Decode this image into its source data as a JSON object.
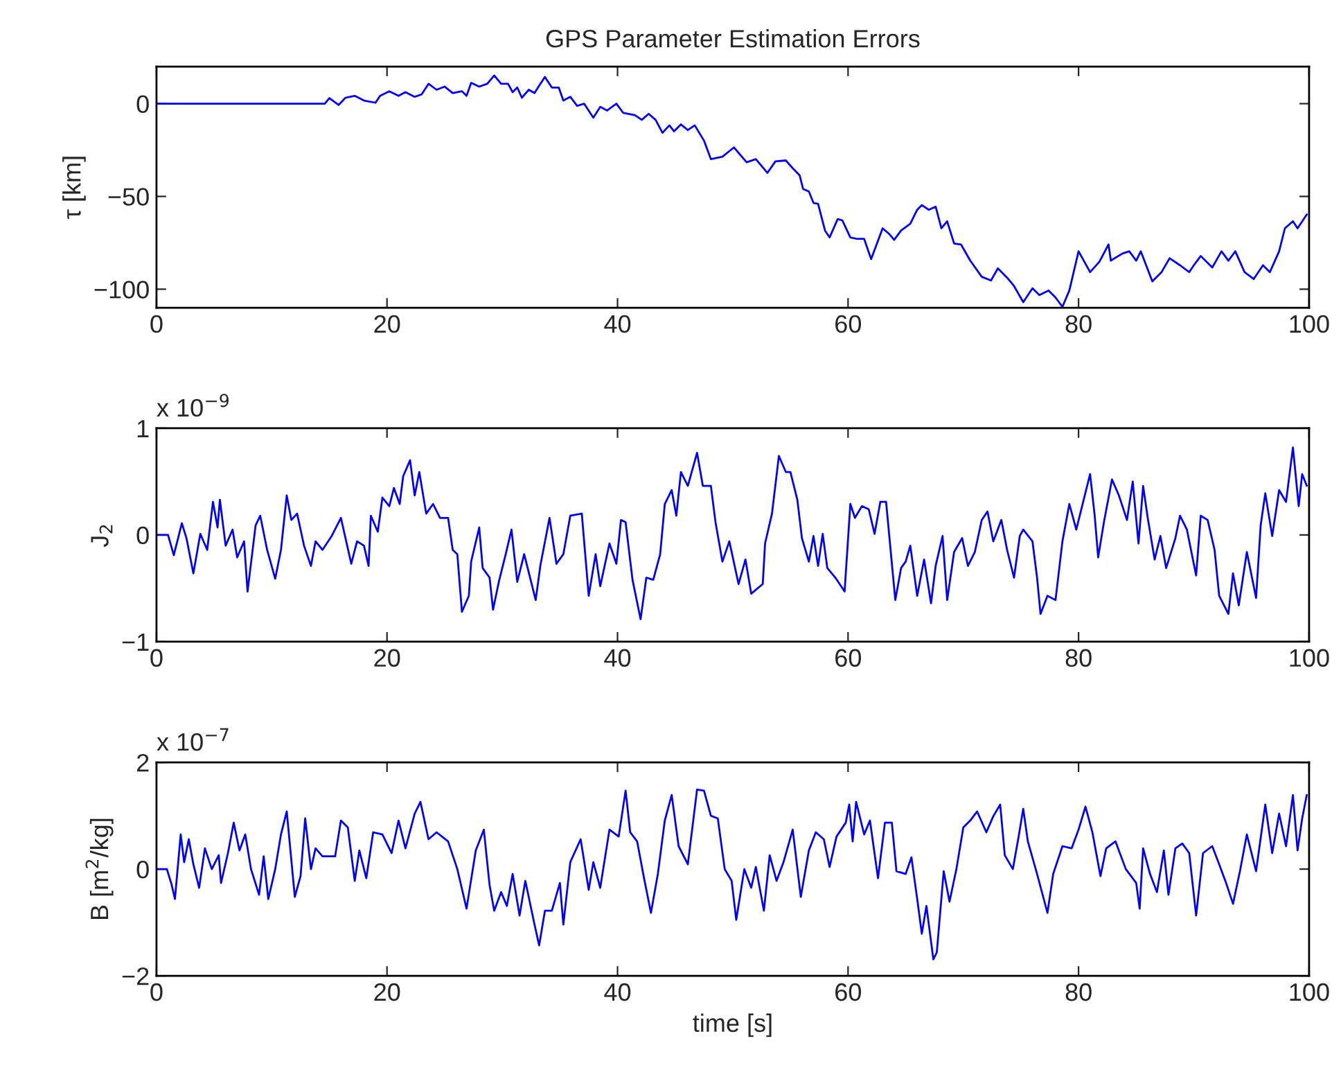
{
  "chart_data": [
    {
      "type": "line",
      "title": "GPS Parameter Estimation Errors",
      "ylabel": "τ [km]",
      "xlim": [
        0,
        100
      ],
      "xticks": [
        0,
        20,
        40,
        60,
        80,
        100
      ],
      "ylim": [
        -110,
        20
      ],
      "yticks": [
        {
          "value": -100,
          "label": "−100"
        },
        {
          "value": -50,
          "label": "−50"
        },
        0
      ],
      "series": [
        {
          "color": "#0000ff",
          "x": [
            0,
            14.6,
            15.0,
            15.8,
            16.4,
            17.2,
            18,
            19,
            19.4,
            20.2,
            21,
            21.6,
            22.4,
            23,
            23.6,
            24.3,
            25,
            25.7,
            26.5,
            26.9,
            27.3,
            28,
            28.7,
            29.3,
            29.9,
            30.5,
            30.9,
            31.3,
            31.7,
            32.3,
            32.8,
            33.1,
            33.7,
            34.3,
            34.9,
            35.3,
            35.9,
            36.5,
            37.1,
            37.9,
            38.5,
            39.1,
            39.9,
            40.5,
            41.5,
            42.1,
            42.7,
            43.3,
            43.9,
            44.5,
            44.9,
            45.5,
            46.1,
            46.7,
            47.5,
            48.1,
            49.1,
            50.1,
            51.2,
            52,
            53,
            53.7,
            54.6,
            55.2,
            55.8,
            56.1,
            56.6,
            57,
            57.4,
            58,
            58.4,
            59.1,
            59.5,
            60.2,
            60.8,
            61.4,
            62,
            63,
            63.6,
            64,
            64.6,
            65.4,
            66,
            66.4,
            67,
            67.6,
            68.1,
            68.6,
            69.2,
            69.8,
            70.6,
            71.6,
            72.4,
            73,
            73.8,
            74.4,
            75.2,
            76,
            76.6,
            77.4,
            78,
            78.6,
            79.2,
            80,
            81,
            81.8,
            82.6,
            82.8,
            83.8,
            84.4,
            85,
            85.4,
            86.4,
            87.2,
            87.9,
            88.8,
            89.6,
            90,
            90.6,
            91.6,
            92.4,
            93,
            93.6,
            94.4,
            95.2,
            96,
            96.6,
            97.4,
            97.9,
            98.6,
            99,
            99.8
          ],
          "values": [
            0,
            0,
            3,
            -0.7,
            3.2,
            4.2,
            1.7,
            0.5,
            4.2,
            6.7,
            4.2,
            6.2,
            3.7,
            5,
            10.7,
            7.5,
            9.2,
            5.7,
            6.7,
            4.2,
            11.2,
            9.2,
            10.7,
            15.2,
            10.7,
            10.7,
            6.2,
            8.7,
            3.2,
            7.5,
            5.7,
            8.7,
            14.4,
            8.7,
            8.7,
            1.7,
            3.7,
            -1.2,
            0,
            -7.5,
            -1.7,
            -3.7,
            0,
            -5,
            -6.2,
            -8.7,
            -5.5,
            -8.7,
            -15.7,
            -11.7,
            -14.9,
            -11.2,
            -14.2,
            -11.7,
            -19.9,
            -29.9,
            -28.6,
            -23.6,
            -31.6,
            -29.9,
            -37.3,
            -31.1,
            -30.6,
            -34.8,
            -38.6,
            -46,
            -47.3,
            -53.5,
            -54,
            -68.4,
            -72.1,
            -62.2,
            -62.9,
            -72.1,
            -72.9,
            -72.9,
            -83.8,
            -67.2,
            -70.4,
            -73.4,
            -68.4,
            -64.7,
            -57.2,
            -54.7,
            -57.2,
            -55.5,
            -67.2,
            -63.4,
            -75.4,
            -75.9,
            -84.6,
            -93.3,
            -95.3,
            -88.8,
            -93.8,
            -98.3,
            -107,
            -99.5,
            -103.2,
            -100.7,
            -104.5,
            -109.5,
            -100.7,
            -79.6,
            -90.8,
            -85.3,
            -75.9,
            -84.6,
            -80.8,
            -79.6,
            -84.6,
            -79.6,
            -95.8,
            -90.8,
            -83.3,
            -87.1,
            -90.8,
            -87.1,
            -82.1,
            -88.3,
            -79.6,
            -84.6,
            -79.6,
            -90.8,
            -94.5,
            -87.1,
            -90.8,
            -79.6,
            -67.2,
            -63.4,
            -67.2,
            -59.7
          ]
        }
      ]
    },
    {
      "type": "line",
      "ylabel": "J$_{2}$",
      "annotations": [
        "x 10$^{−9}$"
      ],
      "xlim": [
        0,
        100
      ],
      "xticks": [
        0,
        20,
        40,
        60,
        80,
        100
      ],
      "ylim": [
        -1,
        1
      ],
      "yticks": [
        {
          "value": -1,
          "label": "−1"
        },
        0,
        1
      ],
      "series": [
        {
          "color": "#0000ff",
          "x": [
            0,
            1,
            1.5,
            2.2,
            2.6,
            3.2,
            3.8,
            4.4,
            4.9,
            5.3,
            5.5,
            6,
            6.6,
            7,
            7.6,
            7.9,
            8.6,
            9,
            9.6,
            10.3,
            10.8,
            11.3,
            11.7,
            12.2,
            12.8,
            13.4,
            13.8,
            14.4,
            15.2,
            16,
            16.9,
            17.4,
            18,
            18.4,
            18.6,
            19.2,
            19.6,
            20.2,
            20.6,
            21.1,
            21.4,
            22,
            22.4,
            22.8,
            23.4,
            24,
            24.6,
            25.3,
            25.7,
            26.1,
            26.5,
            27.1,
            27.3,
            28,
            28.3,
            28.9,
            29.2,
            29.7,
            30.3,
            30.8,
            31.3,
            31.9,
            32.9,
            33.3,
            34.1,
            34.7,
            35.3,
            35.9,
            36.9,
            37.5,
            38.1,
            38.5,
            39.3,
            39.9,
            40.3,
            40.7,
            41.3,
            42,
            42.5,
            43.1,
            43.7,
            44.1,
            44.7,
            45.1,
            45.5,
            46.1,
            46.9,
            47.4,
            48.1,
            48.5,
            49.1,
            49.7,
            50.5,
            51.1,
            51.6,
            52.6,
            52.8,
            53.4,
            54,
            54.6,
            55,
            55.6,
            56,
            56.6,
            57,
            57.4,
            57.8,
            58.2,
            58.9,
            59.7,
            60.2,
            60.6,
            61.2,
            61.8,
            62.3,
            62.8,
            63.3,
            64.1,
            64.6,
            65,
            65.4,
            66,
            66.6,
            67.2,
            67.6,
            68.2,
            68.6,
            69.2,
            69.9,
            70.4,
            71,
            71.6,
            72.1,
            72.6,
            73.3,
            73.8,
            74.4,
            74.9,
            75.2,
            76,
            76.4,
            76.7,
            77.3,
            78,
            78.6,
            79.2,
            79.8,
            80.4,
            81,
            81.4,
            81.7,
            82.2,
            82.9,
            83.5,
            84.2,
            84.7,
            85.2,
            85.6,
            86,
            86.6,
            87.1,
            87.6,
            88.4,
            88.8,
            89.4,
            90.2,
            90.6,
            91.2,
            91.8,
            92.2,
            93,
            93.4,
            93.9,
            94.6,
            95.4,
            95.8,
            96.2,
            96.8,
            97.4,
            98,
            98.6,
            99.1,
            99.4,
            99.8
          ],
          "values": [
            0,
            0,
            -0.19,
            0.11,
            -0.03,
            -0.36,
            0.01,
            -0.14,
            0.31,
            0.07,
            0.33,
            -0.1,
            0.05,
            -0.21,
            -0.06,
            -0.53,
            0.09,
            0.18,
            -0.14,
            -0.41,
            -0.14,
            0.37,
            0.14,
            0.2,
            -0.1,
            -0.29,
            -0.06,
            -0.14,
            -0.01,
            0.16,
            -0.27,
            -0.06,
            -0.1,
            -0.29,
            0.18,
            0.03,
            0.35,
            0.27,
            0.44,
            0.29,
            0.55,
            0.7,
            0.37,
            0.59,
            0.2,
            0.29,
            0.16,
            0.16,
            -0.14,
            -0.18,
            -0.72,
            -0.57,
            -0.25,
            0.07,
            -0.31,
            -0.4,
            -0.7,
            -0.44,
            -0.18,
            0.05,
            -0.44,
            -0.18,
            -0.61,
            -0.29,
            0.16,
            -0.27,
            -0.18,
            0.18,
            0.2,
            -0.57,
            -0.18,
            -0.48,
            -0.08,
            -0.27,
            0.14,
            0.12,
            -0.42,
            -0.79,
            -0.4,
            -0.42,
            -0.18,
            0.29,
            0.42,
            0.18,
            0.59,
            0.46,
            0.77,
            0.46,
            0.46,
            0.12,
            -0.25,
            -0.06,
            -0.46,
            -0.23,
            -0.55,
            -0.46,
            -0.08,
            0.2,
            0.74,
            0.59,
            0.59,
            0.33,
            -0.03,
            -0.25,
            -0.01,
            -0.29,
            0.01,
            -0.31,
            -0.4,
            -0.53,
            0.29,
            0.16,
            0.27,
            0.24,
            0.01,
            0.31,
            0.31,
            -0.61,
            -0.31,
            -0.25,
            -0.1,
            -0.57,
            -0.23,
            -0.64,
            -0.29,
            -0.01,
            -0.61,
            -0.16,
            -0.03,
            -0.29,
            -0.16,
            0.14,
            0.22,
            -0.06,
            0.14,
            -0.14,
            -0.4,
            -0.01,
            0.05,
            -0.06,
            -0.4,
            -0.74,
            -0.57,
            -0.61,
            -0.06,
            0.29,
            0.05,
            0.31,
            0.57,
            0.18,
            -0.21,
            0.12,
            0.52,
            0.37,
            0.14,
            0.5,
            -0.08,
            0.46,
            0.16,
            -0.23,
            -0.01,
            -0.31,
            -0.03,
            0.18,
            0.05,
            -0.38,
            0.18,
            0.14,
            -0.14,
            -0.57,
            -0.74,
            -0.36,
            -0.66,
            -0.16,
            -0.59,
            0.09,
            0.39,
            -0.01,
            0.42,
            0.31,
            0.82,
            0.27,
            0.57,
            0.46
          ]
        }
      ]
    },
    {
      "type": "line",
      "xlabel": "time [s]",
      "ylabel": "B [m$^{2}$/kg]",
      "annotations": [
        "x 10$^{−7}$"
      ],
      "xlim": [
        0,
        100
      ],
      "xticks": [
        0,
        20,
        40,
        60,
        80,
        100
      ],
      "ylim": [
        -2,
        2
      ],
      "yticks": [
        {
          "value": -2,
          "label": "−2"
        },
        0,
        2
      ],
      "series": [
        {
          "color": "#0000ff",
          "x": [
            0,
            0.9,
            1.3,
            1.6,
            2.1,
            2.4,
            2.8,
            3.2,
            3.7,
            4.2,
            4.8,
            5.4,
            5.6,
            6.2,
            6.7,
            7.2,
            7.7,
            8.2,
            8.9,
            9.3,
            9.7,
            10.3,
            10.8,
            11.3,
            11.7,
            12,
            12.5,
            12.9,
            13.4,
            13.8,
            14.4,
            15.5,
            16,
            16.6,
            17.2,
            17.6,
            18.2,
            18.8,
            19.6,
            20.4,
            21,
            21.6,
            22.4,
            22.9,
            23.6,
            24.3,
            25.3,
            26.1,
            26.9,
            27.7,
            28.4,
            28.9,
            29.3,
            29.9,
            30.4,
            30.9,
            31.5,
            32,
            32.8,
            33.2,
            33.7,
            34.3,
            35,
            35.3,
            35.9,
            36.8,
            37.5,
            37.9,
            38.5,
            39.3,
            40.1,
            40.7,
            41.1,
            41.7,
            42.3,
            42.9,
            43.5,
            44.1,
            44.7,
            45.3,
            46.1,
            46.9,
            47.5,
            48.1,
            48.7,
            49.3,
            49.9,
            50.3,
            51,
            51.6,
            52,
            52.7,
            53.2,
            53.8,
            54.4,
            55.2,
            55.9,
            56.6,
            57.2,
            57.9,
            58.4,
            59,
            59.8,
            60.1,
            60.4,
            60.7,
            61.4,
            61.9,
            62.6,
            63.2,
            63.8,
            64.2,
            65,
            65.5,
            66,
            66.4,
            66.8,
            67.4,
            67.7,
            68.3,
            68.8,
            69.4,
            70,
            70.6,
            71.2,
            72,
            72.6,
            73.2,
            73.6,
            74.3,
            74.8,
            75.2,
            75.6,
            76.4,
            77.3,
            77.8,
            78.6,
            79.4,
            80,
            80.6,
            81.2,
            81.9,
            82.4,
            83.2,
            84.1,
            85,
            85.3,
            85.6,
            86.2,
            86.8,
            87.4,
            87.8,
            88.4,
            89,
            89.6,
            90.2,
            90.8,
            91.6,
            92.2,
            92.8,
            93.4,
            94,
            94.6,
            95.4,
            96.2,
            96.8,
            97.4,
            98,
            98.6,
            99,
            99.4,
            99.8
          ],
          "values": [
            0,
            0,
            -0.28,
            -0.56,
            0.65,
            0.13,
            0.56,
            0.09,
            -0.35,
            0.39,
            0,
            0.26,
            -0.26,
            0.3,
            0.87,
            0.35,
            0.65,
            0,
            -0.48,
            0.24,
            -0.56,
            0,
            0.65,
            1.08,
            0.17,
            -0.52,
            -0.13,
            0.95,
            0,
            0.39,
            0.24,
            0.24,
            0.91,
            0.78,
            -0.22,
            0.35,
            -0.17,
            0.69,
            0.65,
            0.3,
            0.91,
            0.39,
            1.04,
            1.26,
            0.56,
            0.69,
            0.52,
            0,
            -0.74,
            0.35,
            0.74,
            -0.3,
            -0.78,
            -0.43,
            -0.69,
            -0.09,
            -0.87,
            -0.22,
            -1.04,
            -1.43,
            -0.78,
            -0.78,
            -0.26,
            -1.04,
            0.13,
            0.56,
            -0.39,
            0.13,
            -0.35,
            0.74,
            0.61,
            1.47,
            0.69,
            0.52,
            -0.17,
            -0.82,
            -0.09,
            0.91,
            1.39,
            0.43,
            0.09,
            1.49,
            1.47,
            1,
            0.95,
            0,
            -0.22,
            -0.95,
            0,
            -0.35,
            0.04,
            -0.78,
            0.26,
            -0.22,
            0.13,
            0.74,
            -0.52,
            0.35,
            0.69,
            0.56,
            0.04,
            0.61,
            0.87,
            1.21,
            0.52,
            1.26,
            0.65,
            0.91,
            -0.17,
            0.87,
            0.87,
            -0.04,
            -0.09,
            0.22,
            -0.56,
            -1.21,
            -0.69,
            -1.69,
            -1.56,
            -0.04,
            -0.61,
            0,
            0.78,
            0.91,
            1.08,
            0.69,
            0.99,
            1.21,
            0.26,
            0,
            0.61,
            1.13,
            0.52,
            -0.09,
            -0.82,
            -0.09,
            0.43,
            0.39,
            0.74,
            1.17,
            0.69,
            -0.13,
            0.39,
            0.52,
            0,
            -0.26,
            -0.74,
            0.39,
            -0.09,
            -0.43,
            0.35,
            -0.48,
            0.39,
            0.48,
            0.3,
            -0.87,
            0.3,
            0.43,
            0.09,
            -0.26,
            -0.65,
            -0.04,
            0.65,
            -0.04,
            1.21,
            0.3,
            1.04,
            0.43,
            1.39,
            0.35,
            0.95,
            1.39
          ]
        }
      ]
    }
  ]
}
